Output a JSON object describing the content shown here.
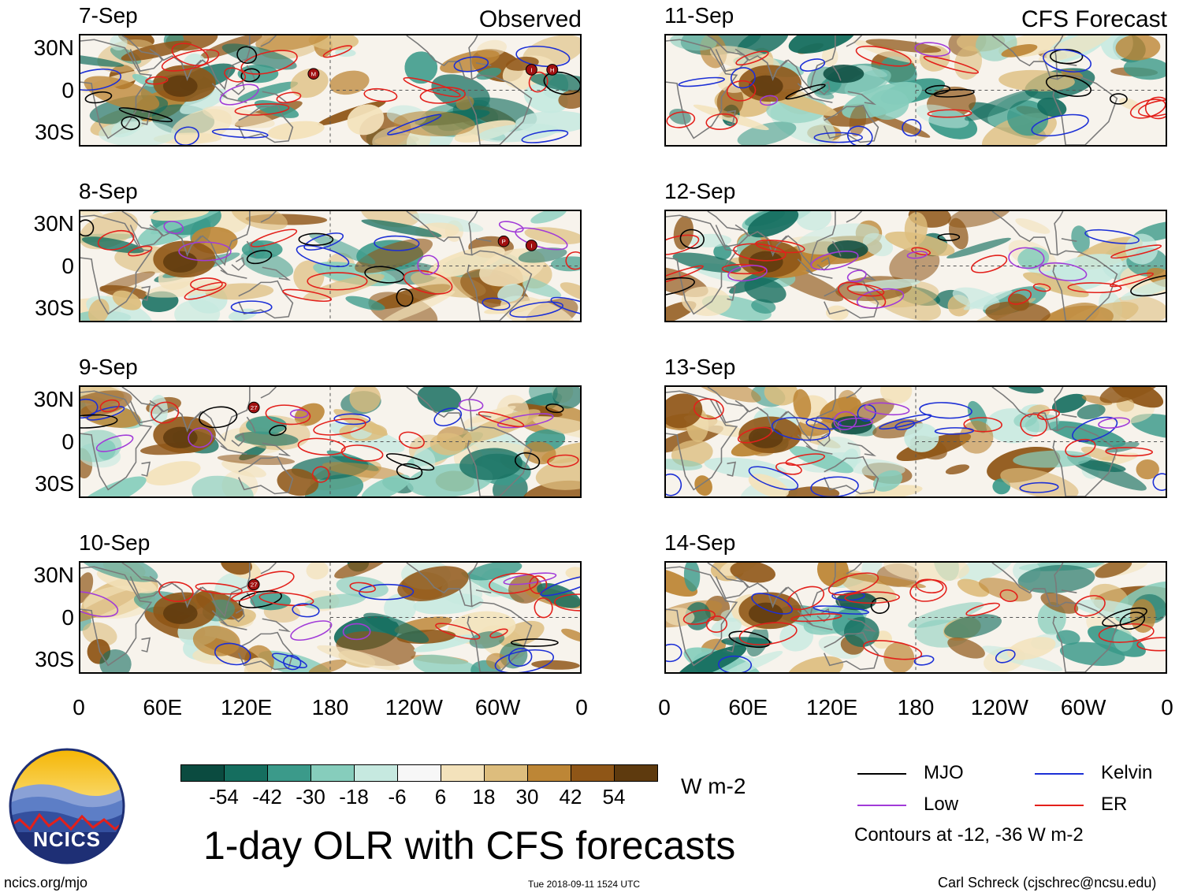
{
  "chart_data": {
    "type": "heatmap",
    "title": "1-day OLR with CFS forecasts",
    "units": "W m-2",
    "observed_label": "Observed",
    "forecast_label": "CFS Forecast",
    "observed_panels": [
      "7-Sep",
      "8-Sep",
      "9-Sep",
      "10-Sep"
    ],
    "forecast_panels": [
      "11-Sep",
      "12-Sep",
      "13-Sep",
      "14-Sep"
    ],
    "lat_ticks": [
      "30N",
      "0",
      "30S"
    ],
    "lon_ticks": [
      "0",
      "60E",
      "120E",
      "180",
      "120W",
      "60W",
      "0"
    ],
    "colorbar_ticks": [
      "-54",
      "-42",
      "-30",
      "-18",
      "-6",
      "6",
      "18",
      "30",
      "42",
      "54"
    ],
    "colorbar_colors": [
      "#0b4b40",
      "#156e5f",
      "#3b9a8a",
      "#86cdbc",
      "#c6e9e0",
      "#f7f7f7",
      "#f3e2bb",
      "#ddbd7d",
      "#bd8636",
      "#8f5617",
      "#5e3a0e"
    ],
    "legend": [
      {
        "label": "MJO",
        "color": "#000000"
      },
      {
        "label": "Kelvin",
        "color": "#1c2fd6"
      },
      {
        "label": "Low",
        "color": "#a13bd8"
      },
      {
        "label": "ER",
        "color": "#e3201b"
      }
    ],
    "contour_note": "Contours at -12, -36 W m-2"
  },
  "colors": {
    "land": "#7a7a7a",
    "wet": "#156e5f",
    "dry": "#8f5617"
  },
  "footer": {
    "logo_text": "NCICS",
    "site": "ncics.org/mjo",
    "timestamp": "Tue 2018-09-11 1524 UTC",
    "credit": "Carl Schreck (cjschrec@ncsu.edu)"
  },
  "storms": [
    {
      "panel": 0,
      "labels": [
        "M",
        "I",
        "H"
      ]
    },
    {
      "panel": 1,
      "labels": [
        "P",
        "I"
      ]
    },
    {
      "panel": 2,
      "labels": [
        "27"
      ]
    },
    {
      "panel": 3,
      "labels": [
        "27"
      ]
    }
  ]
}
